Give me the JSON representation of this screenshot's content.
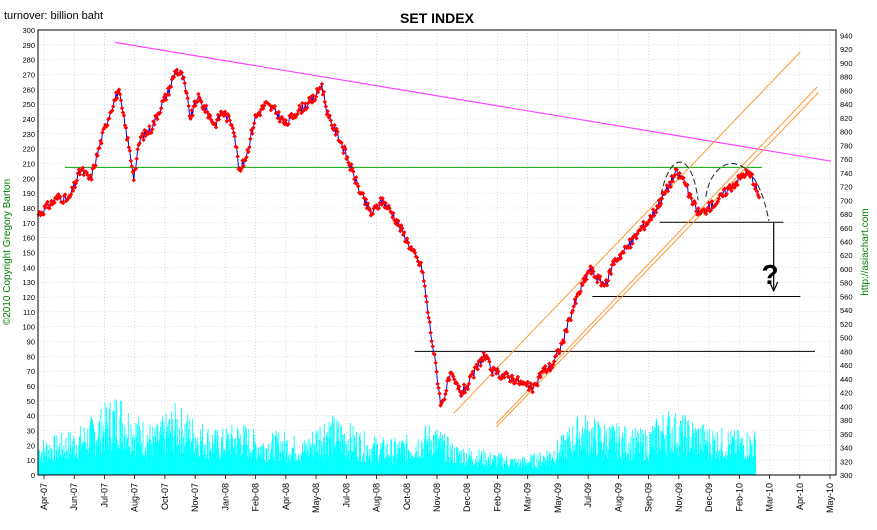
{
  "chart_data": {
    "type": "line",
    "title": "SET INDEX",
    "left_axis_label": "turnover: billion baht",
    "left_axis_ticks": [
      "0",
      "10",
      "20",
      "30",
      "40",
      "50",
      "60",
      "70",
      "80",
      "90",
      "100",
      "110",
      "120",
      "130",
      "140",
      "150",
      "160",
      "170",
      "180",
      "190",
      "200",
      "210",
      "220",
      "230",
      "240",
      "250",
      "260",
      "270",
      "280",
      "290",
      "300"
    ],
    "ylim_left": [
      0,
      300
    ],
    "right_axis_ticks": [
      "300",
      "320",
      "340",
      "360",
      "380",
      "400",
      "420",
      "440",
      "460",
      "480",
      "500",
      "520",
      "540",
      "560",
      "580",
      "600",
      "620",
      "640",
      "660",
      "680",
      "700",
      "720",
      "740",
      "760",
      "780",
      "800",
      "820",
      "840",
      "860",
      "880",
      "900",
      "920",
      "940"
    ],
    "ylim_right": [
      300,
      948
    ],
    "x_ticks": [
      "Apr-07",
      "Jun-07",
      "Jul-07",
      "Aug-07",
      "Oct-07",
      "Nov-07",
      "Jan-08",
      "Feb-08",
      "Apr-08",
      "May-08",
      "Jul-08",
      "Aug-08",
      "Oct-08",
      "Nov-08",
      "Dec-08",
      "Feb-09",
      "Mar-09",
      "May-09",
      "Jul-09",
      "Aug-09",
      "Sep-09",
      "Nov-09",
      "Dec-09",
      "Feb-10",
      "Mar-10",
      "Apr-10",
      "May-10"
    ],
    "copyright": "©2010 Copyright Gregory Barton",
    "source": "http://asiachart.com",
    "annotation": "?",
    "grid": true,
    "series": [
      {
        "color": "#ff0000",
        "index_points": [
          [
            "2007-04-02",
            680
          ],
          [
            "2007-05-01",
            705
          ],
          [
            "2007-05-15",
            700
          ],
          [
            "2007-06-01",
            745
          ],
          [
            "2007-06-15",
            730
          ],
          [
            "2007-07-01",
            790
          ],
          [
            "2007-07-15",
            835
          ],
          [
            "2007-07-25",
            860
          ],
          [
            "2007-08-05",
            800
          ],
          [
            "2007-08-16",
            735
          ],
          [
            "2007-08-25",
            790
          ],
          [
            "2007-09-10",
            805
          ],
          [
            "2007-09-25",
            840
          ],
          [
            "2007-10-05",
            860
          ],
          [
            "2007-10-15",
            890
          ],
          [
            "2007-10-25",
            880
          ],
          [
            "2007-11-05",
            820
          ],
          [
            "2007-11-15",
            850
          ],
          [
            "2007-11-28",
            830
          ],
          [
            "2007-12-10",
            810
          ],
          [
            "2007-12-20",
            830
          ],
          [
            "2008-01-05",
            810
          ],
          [
            "2008-01-14",
            740
          ],
          [
            "2008-01-25",
            770
          ],
          [
            "2008-02-05",
            820
          ],
          [
            "2008-02-20",
            840
          ],
          [
            "2008-03-05",
            830
          ],
          [
            "2008-03-20",
            810
          ],
          [
            "2008-04-05",
            830
          ],
          [
            "2008-04-20",
            840
          ],
          [
            "2008-05-01",
            850
          ],
          [
            "2008-05-10",
            870
          ],
          [
            "2008-05-20",
            820
          ],
          [
            "2008-06-05",
            790
          ],
          [
            "2008-06-20",
            750
          ],
          [
            "2008-07-05",
            710
          ],
          [
            "2008-07-20",
            680
          ],
          [
            "2008-08-05",
            700
          ],
          [
            "2008-08-20",
            680
          ],
          [
            "2008-09-05",
            650
          ],
          [
            "2008-09-20",
            620
          ],
          [
            "2008-10-01",
            600
          ],
          [
            "2008-10-10",
            530
          ],
          [
            "2008-10-20",
            460
          ],
          [
            "2008-10-28",
            400
          ],
          [
            "2008-11-10",
            445
          ],
          [
            "2008-11-25",
            420
          ],
          [
            "2008-12-05",
            430
          ],
          [
            "2008-12-15",
            450
          ],
          [
            "2008-12-28",
            475
          ],
          [
            "2009-01-10",
            450
          ],
          [
            "2009-01-25",
            445
          ],
          [
            "2009-02-10",
            440
          ],
          [
            "2009-02-25",
            430
          ],
          [
            "2009-03-10",
            425
          ],
          [
            "2009-03-20",
            450
          ],
          [
            "2009-04-05",
            460
          ],
          [
            "2009-04-20",
            495
          ],
          [
            "2009-05-05",
            545
          ],
          [
            "2009-05-15",
            570
          ],
          [
            "2009-05-28",
            600
          ],
          [
            "2009-06-10",
            585
          ],
          [
            "2009-06-20",
            575
          ],
          [
            "2009-07-01",
            610
          ],
          [
            "2009-07-15",
            625
          ],
          [
            "2009-07-28",
            640
          ],
          [
            "2009-08-10",
            660
          ],
          [
            "2009-08-20",
            670
          ],
          [
            "2009-09-01",
            690
          ],
          [
            "2009-09-15",
            715
          ],
          [
            "2009-09-28",
            740
          ],
          [
            "2009-10-10",
            730
          ],
          [
            "2009-10-20",
            700
          ],
          [
            "2009-11-01",
            680
          ],
          [
            "2009-11-15",
            690
          ],
          [
            "2009-11-28",
            700
          ],
          [
            "2009-12-10",
            715
          ],
          [
            "2009-12-22",
            725
          ],
          [
            "2010-01-05",
            740
          ],
          [
            "2010-01-15",
            735
          ],
          [
            "2010-01-25",
            705
          ]
        ]
      },
      {
        "color": "#00ffff",
        "turnover_billion_baht": [
          [
            "2007-04-02",
            16
          ],
          [
            "2007-05-01",
            18
          ],
          [
            "2007-06-01",
            22
          ],
          [
            "2007-07-01",
            30
          ],
          [
            "2007-07-25",
            38
          ],
          [
            "2007-08-16",
            28
          ],
          [
            "2007-09-15",
            22
          ],
          [
            "2007-10-15",
            32
          ],
          [
            "2007-11-15",
            25
          ],
          [
            "2007-12-15",
            20
          ],
          [
            "2008-01-15",
            24
          ],
          [
            "2008-02-15",
            18
          ],
          [
            "2008-03-15",
            20
          ],
          [
            "2008-04-15",
            16
          ],
          [
            "2008-05-15",
            28
          ],
          [
            "2008-06-15",
            24
          ],
          [
            "2008-07-15",
            18
          ],
          [
            "2008-08-15",
            16
          ],
          [
            "2008-09-15",
            18
          ],
          [
            "2008-10-15",
            24
          ],
          [
            "2008-11-15",
            14
          ],
          [
            "2008-12-15",
            12
          ],
          [
            "2009-01-15",
            10
          ],
          [
            "2009-02-15",
            8
          ],
          [
            "2009-03-15",
            10
          ],
          [
            "2009-04-15",
            16
          ],
          [
            "2009-05-15",
            28
          ],
          [
            "2009-06-15",
            24
          ],
          [
            "2009-07-15",
            22
          ],
          [
            "2009-08-15",
            20
          ],
          [
            "2009-09-15",
            30
          ],
          [
            "2009-10-15",
            26
          ],
          [
            "2009-11-15",
            22
          ],
          [
            "2009-12-15",
            20
          ],
          [
            "2010-01-20",
            20
          ]
        ]
      }
    ],
    "overlays": {
      "magenta_trendline": [
        [
          "2007-07-20",
          930
        ],
        [
          "2010-05-08",
          757
        ]
      ],
      "green_horizontal_index": 748,
      "black_horizontal_lines": [
        {
          "from": "2008-09-20",
          "to": "2010-04-15",
          "index": 480
        },
        {
          "from": "2009-06-01",
          "to": "2010-03-25",
          "index": 560
        },
        {
          "from": "2009-09-05",
          "to": "2010-03-01",
          "index": 668
        }
      ],
      "orange_channel_lines": [
        [
          [
            "2008-11-15",
            390
          ],
          [
            "2010-03-25",
            916
          ]
        ],
        [
          [
            "2009-01-15",
            375
          ],
          [
            "2010-04-18",
            865
          ]
        ],
        [
          [
            "2009-01-15",
            370
          ],
          [
            "2010-04-20",
            857
          ]
        ]
      ],
      "arrow": {
        "from": [
          "2010-02-15",
          668
        ],
        "to": [
          "2010-02-15",
          568
        ]
      },
      "question_mark_at": [
        "2010-03-03",
        590
      ]
    }
  }
}
